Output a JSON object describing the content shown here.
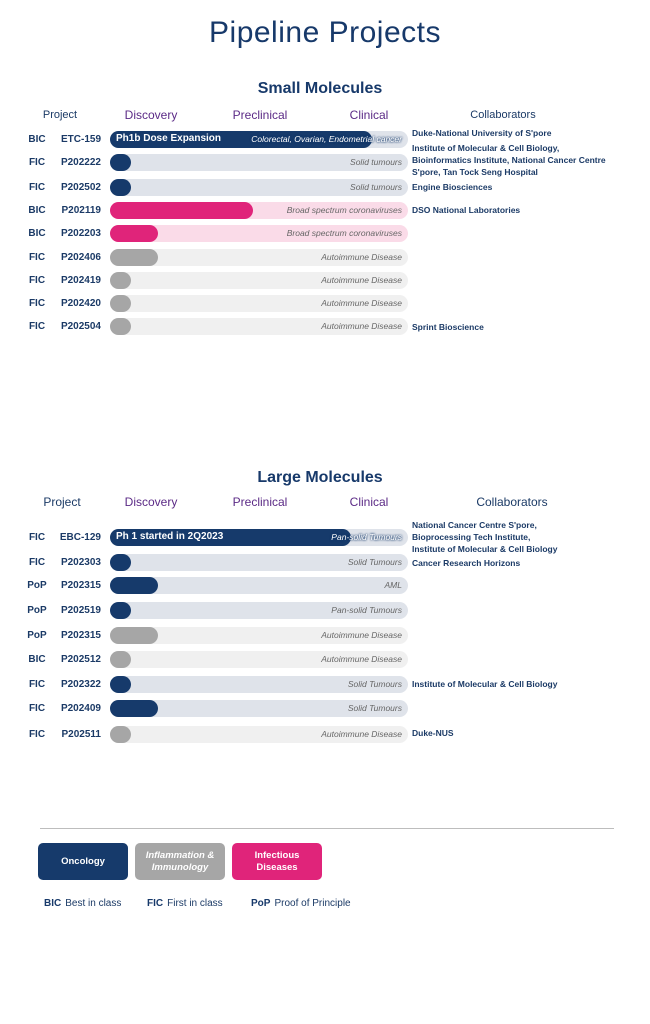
{
  "title": "Pipeline Projects",
  "colors": {
    "oncology": "#163a6b",
    "oncology_track": "#dfe3ea",
    "inflammation": "#a6a6a6",
    "inflammation_track": "#f0f0f0",
    "infectious": "#e0247a",
    "infectious_track": "#fadbe8"
  },
  "headers": {
    "project": "Project",
    "discovery": "Discovery",
    "preclinical": "Preclinical",
    "clinical": "Clinical",
    "collaborators": "Collaborators"
  },
  "small": {
    "title": "Small Molecules",
    "rows": [
      {
        "cls": "BIC",
        "code": "ETC-159",
        "area": "oncology",
        "progress": 0.88,
        "fill_text": "Ph1b Dose Expansion",
        "indication": "Colorectal, Ovarian, Endometrial cancer",
        "collab": "Duke-National University of S'pore"
      },
      {
        "cls": "FIC",
        "code": "P202222",
        "area": "oncology",
        "progress": 0.07,
        "indication": "Solid tumours",
        "collab": "Institute of Molecular & Cell Biology,\nBioinformatics Institute, National Cancer Centre\nS'pore, Tan Tock Seng Hospital"
      },
      {
        "cls": "FIC",
        "code": "P202502",
        "area": "oncology",
        "progress": 0.07,
        "indication": "Solid tumours",
        "collab": "Engine Biosciences"
      },
      {
        "cls": "BIC",
        "code": "P202119",
        "area": "infectious",
        "progress": 0.48,
        "indication": "Broad spectrum coronaviruses",
        "collab": "DSO National Laboratories"
      },
      {
        "cls": "BIC",
        "code": "P202203",
        "area": "infectious",
        "progress": 0.16,
        "indication": "Broad spectrum coronaviruses"
      },
      {
        "cls": "FIC",
        "code": "P202406",
        "area": "inflammation",
        "progress": 0.16,
        "indication": "Autoimmune Disease"
      },
      {
        "cls": "FIC",
        "code": "P202419",
        "area": "inflammation",
        "progress": 0.07,
        "indication": "Autoimmune Disease"
      },
      {
        "cls": "FIC",
        "code": "P202420",
        "area": "inflammation",
        "progress": 0.07,
        "indication": "Autoimmune Disease"
      },
      {
        "cls": "FIC",
        "code": "P202504",
        "area": "inflammation",
        "progress": 0.07,
        "indication": "Autoimmune Disease",
        "collab": "Sprint Bioscience"
      }
    ]
  },
  "large": {
    "title": "Large Molecules",
    "rows": [
      {
        "cls": "FIC",
        "code": "EBC-129",
        "area": "oncology",
        "progress": 0.81,
        "fill_text": "Ph 1 started in 2Q2023",
        "indication": "Pan-solid Tumours",
        "collab": "National Cancer Centre S'pore,\nBioprocessing Tech Institute,\nInstitute of Molecular & Cell Biology"
      },
      {
        "cls": "FIC",
        "code": "P202303",
        "area": "oncology",
        "progress": 0.07,
        "indication": "Solid Tumours",
        "collab": "Cancer Research Horizons"
      },
      {
        "cls": "PoP",
        "code": "P202315",
        "area": "oncology",
        "progress": 0.16,
        "indication": "AML"
      },
      {
        "cls": "PoP",
        "code": "P202519",
        "area": "oncology",
        "progress": 0.07,
        "indication": "Pan-solid Tumours"
      },
      {
        "cls": "PoP",
        "code": "P202315",
        "area": "inflammation",
        "progress": 0.16,
        "indication": "Autoimmune Disease"
      },
      {
        "cls": "BIC",
        "code": "P202512",
        "area": "inflammation",
        "progress": 0.07,
        "indication": "Autoimmune Disease"
      },
      {
        "cls": "FIC",
        "code": "P202322",
        "area": "oncology",
        "progress": 0.07,
        "indication": "Solid Tumours",
        "collab": "Institute of Molecular & Cell Biology"
      },
      {
        "cls": "FIC",
        "code": "P202409",
        "area": "oncology",
        "progress": 0.16,
        "indication": "Solid Tumours"
      },
      {
        "cls": "FIC",
        "code": "P202511",
        "area": "inflammation",
        "progress": 0.07,
        "indication": "Autoimmune Disease",
        "collab": "Duke-NUS"
      }
    ]
  },
  "legend": {
    "oncology": "Oncology",
    "inflammation": "Inflammation & Immunology",
    "infectious": "Infectious Diseases"
  },
  "abbreviations": [
    {
      "abbr": "BIC",
      "text": "Best in class"
    },
    {
      "abbr": "FIC",
      "text": "First in class"
    },
    {
      "abbr": "PoP",
      "text": "Proof of Principle"
    }
  ]
}
